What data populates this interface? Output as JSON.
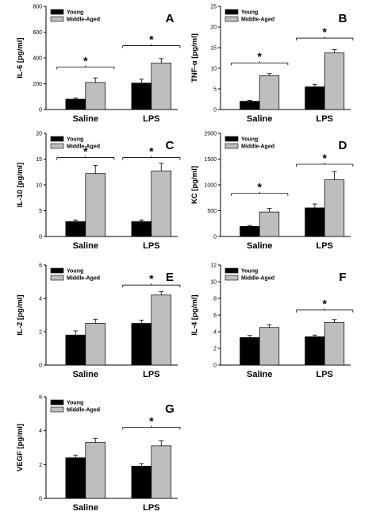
{
  "colors": {
    "young": "#000000",
    "middle_aged": "#bebebe",
    "axis": "#000000"
  },
  "chart_data": [
    {
      "panel_label": "A",
      "type": "bar",
      "ylabel": "IL-6 [pg/ml]",
      "categories": [
        "Saline",
        "LPS"
      ],
      "ylim": [
        0,
        800
      ],
      "yticks": [
        "0",
        "200",
        "400",
        "600",
        "800"
      ],
      "ytick_values": [
        0,
        200,
        400,
        600,
        800
      ],
      "legend": [
        "Young",
        "Middle-Aged"
      ],
      "series": [
        {
          "name": "Young",
          "values": [
            80,
            205
          ],
          "errors": [
            10,
            30
          ]
        },
        {
          "name": "Middle-Aged",
          "values": [
            210,
            360
          ],
          "errors": [
            35,
            35
          ]
        }
      ],
      "significance": [
        {
          "category_index": 0,
          "marker": "*",
          "height": 330
        },
        {
          "category_index": 1,
          "marker": "*",
          "height": 495
        }
      ]
    },
    {
      "panel_label": "B",
      "type": "bar",
      "ylabel": "TNF-α [pg/ml]",
      "categories": [
        "Saline",
        "LPS"
      ],
      "ylim": [
        0,
        25
      ],
      "yticks": [
        "0",
        "5",
        "10",
        "15",
        "20",
        "25"
      ],
      "ytick_values": [
        0,
        5,
        10,
        15,
        20,
        25
      ],
      "legend": [
        "Young",
        "Middle-Aged"
      ],
      "series": [
        {
          "name": "Young",
          "values": [
            2.0,
            5.5
          ],
          "errors": [
            0.2,
            0.6
          ]
        },
        {
          "name": "Middle-Aged",
          "values": [
            8.2,
            13.7
          ],
          "errors": [
            0.5,
            0.8
          ]
        }
      ],
      "significance": [
        {
          "category_index": 0,
          "marker": "*",
          "height": 11.3
        },
        {
          "category_index": 1,
          "marker": "*",
          "height": 17.3
        }
      ]
    },
    {
      "panel_label": "C",
      "type": "bar",
      "ylabel": "IL-10 [pg/ml]",
      "categories": [
        "Saline",
        "LPS"
      ],
      "ylim": [
        0,
        20
      ],
      "yticks": [
        "0",
        "5",
        "10",
        "15",
        "20"
      ],
      "ytick_values": [
        0,
        5,
        10,
        15,
        20
      ],
      "legend": [
        "Young",
        "Middle-Aged"
      ],
      "series": [
        {
          "name": "Young",
          "values": [
            2.9,
            2.9
          ],
          "errors": [
            0.3,
            0.3
          ]
        },
        {
          "name": "Middle-Aged",
          "values": [
            12.2,
            12.7
          ],
          "errors": [
            1.6,
            1.5
          ]
        }
      ],
      "significance": [
        {
          "category_index": 0,
          "marker": "*",
          "height": 15.3
        },
        {
          "category_index": 1,
          "marker": "*",
          "height": 15.3
        }
      ]
    },
    {
      "panel_label": "D",
      "type": "bar",
      "ylabel": "KC [pg/ml]",
      "categories": [
        "Saline",
        "LPS"
      ],
      "ylim": [
        0,
        2000
      ],
      "yticks": [
        "0",
        "500",
        "1000",
        "1500",
        "2000"
      ],
      "ytick_values": [
        0,
        500,
        1000,
        1500,
        2000
      ],
      "legend": [
        "Young",
        "Middle-Aged"
      ],
      "series": [
        {
          "name": "Young",
          "values": [
            195,
            555
          ],
          "errors": [
            20,
            75
          ]
        },
        {
          "name": "Middle-Aged",
          "values": [
            475,
            1100
          ],
          "errors": [
            70,
            160
          ]
        }
      ],
      "significance": [
        {
          "category_index": 0,
          "marker": "*",
          "height": 835
        },
        {
          "category_index": 1,
          "marker": "*",
          "height": 1400
        }
      ]
    },
    {
      "panel_label": "E",
      "type": "bar",
      "ylabel": "IL-2 [pg/ml]",
      "categories": [
        "Saline",
        "LPS"
      ],
      "ylim": [
        0,
        6
      ],
      "yticks": [
        "0",
        "2",
        "4",
        "6"
      ],
      "ytick_values": [
        0,
        2,
        4,
        6
      ],
      "legend": [
        "Young",
        "Middle-Aged"
      ],
      "series": [
        {
          "name": "Young",
          "values": [
            1.8,
            2.5
          ],
          "errors": [
            0.25,
            0.2
          ]
        },
        {
          "name": "Middle-Aged",
          "values": [
            2.5,
            4.2
          ],
          "errors": [
            0.25,
            0.2
          ]
        }
      ],
      "significance": [
        {
          "category_index": 1,
          "marker": "*",
          "height": 4.8
        }
      ]
    },
    {
      "panel_label": "F",
      "type": "bar",
      "ylabel": "IL-4 [pg/ml]",
      "categories": [
        "Saline",
        "LPS"
      ],
      "ylim": [
        0,
        12
      ],
      "yticks": [
        "0",
        "2",
        "4",
        "6",
        "8",
        "10",
        "12"
      ],
      "ytick_values": [
        0,
        2,
        4,
        6,
        8,
        10,
        12
      ],
      "legend": [
        "Young",
        "Middle-Aged"
      ],
      "series": [
        {
          "name": "Young",
          "values": [
            3.3,
            3.4
          ],
          "errors": [
            0.25,
            0.2
          ]
        },
        {
          "name": "Middle-Aged",
          "values": [
            4.5,
            5.1
          ],
          "errors": [
            0.35,
            0.35
          ]
        }
      ],
      "significance": [
        {
          "category_index": 1,
          "marker": "*",
          "height": 6.6
        }
      ]
    },
    {
      "panel_label": "G",
      "type": "bar",
      "ylabel": "VEGF [pg/ml]",
      "categories": [
        "Saline",
        "LPS"
      ],
      "ylim": [
        0,
        6
      ],
      "yticks": [
        "0",
        "2",
        "4",
        "6"
      ],
      "ytick_values": [
        0,
        2,
        4,
        6
      ],
      "legend": [
        "Young",
        "Middle-Aged"
      ],
      "series": [
        {
          "name": "Young",
          "values": [
            2.4,
            1.9
          ],
          "errors": [
            0.15,
            0.15
          ]
        },
        {
          "name": "Middle-Aged",
          "values": [
            3.3,
            3.1
          ],
          "errors": [
            0.25,
            0.3
          ]
        }
      ],
      "significance": [
        {
          "category_index": 1,
          "marker": "*",
          "height": 4.2
        }
      ]
    }
  ]
}
